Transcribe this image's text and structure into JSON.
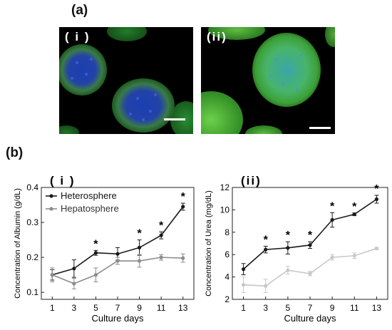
{
  "panel_a": {
    "label": "(a)",
    "images": [
      {
        "label": "( i )"
      },
      {
        "label": "(ii)"
      }
    ]
  },
  "panel_b": {
    "label": "(b)"
  },
  "chart_data": [
    {
      "type": "line",
      "panel_label": "( i )",
      "xlabel": "Culture days",
      "ylabel": "Concentration of Albumin (g/dL)",
      "x": [
        1,
        3,
        5,
        7,
        9,
        11,
        13
      ],
      "xlim": [
        0,
        14
      ],
      "ylim": [
        0.08,
        0.4
      ],
      "yticks": [
        0.1,
        0.2,
        0.3,
        0.4
      ],
      "ytick_labels": [
        "0.1",
        "0.2",
        "0.3",
        "0.4"
      ],
      "legend": "top-left",
      "series": [
        {
          "name": "Heterosphere",
          "color": "#1a1a1a",
          "values": [
            0.15,
            0.168,
            0.213,
            0.21,
            0.228,
            0.263,
            0.345
          ],
          "errors": [
            0.015,
            0.025,
            0.007,
            0.018,
            0.022,
            0.01,
            0.01
          ]
        },
        {
          "name": "Hepatosphere",
          "color": "#8c8c8c",
          "values": [
            0.15,
            0.125,
            0.15,
            0.19,
            0.19,
            0.2,
            0.198
          ],
          "errors": [
            0.02,
            0.015,
            0.02,
            0.01,
            0.018,
            0.008,
            0.012
          ]
        }
      ],
      "significance_marker": "*",
      "significant_x": [
        5,
        9,
        11,
        13
      ]
    },
    {
      "type": "line",
      "panel_label": "(ii)",
      "xlabel": "Culture days",
      "ylabel": "Concentration of Urea (mg/dL)",
      "x": [
        1,
        3,
        5,
        7,
        9,
        11,
        13
      ],
      "xlim": [
        0,
        14
      ],
      "ylim": [
        2,
        12
      ],
      "yticks": [
        2,
        4,
        6,
        8,
        10,
        12
      ],
      "ytick_labels": [
        "2",
        "4",
        "6",
        "8",
        "10",
        "12"
      ],
      "series": [
        {
          "color": "#1a1a1a",
          "values": [
            4.7,
            6.45,
            6.6,
            6.85,
            9.1,
            9.6,
            10.95
          ],
          "errors": [
            0.5,
            0.3,
            0.55,
            0.3,
            0.65,
            0.12,
            0.35
          ]
        },
        {
          "color": "#c8c8c8",
          "values": [
            3.3,
            3.2,
            4.6,
            4.3,
            5.75,
            5.9,
            6.55
          ],
          "errors": [
            0.7,
            0.6,
            0.35,
            0.2,
            0.25,
            0.25,
            0.1
          ]
        }
      ],
      "significance_marker": "*",
      "significant_x": [
        3,
        5,
        7,
        9,
        11,
        13
      ]
    }
  ]
}
